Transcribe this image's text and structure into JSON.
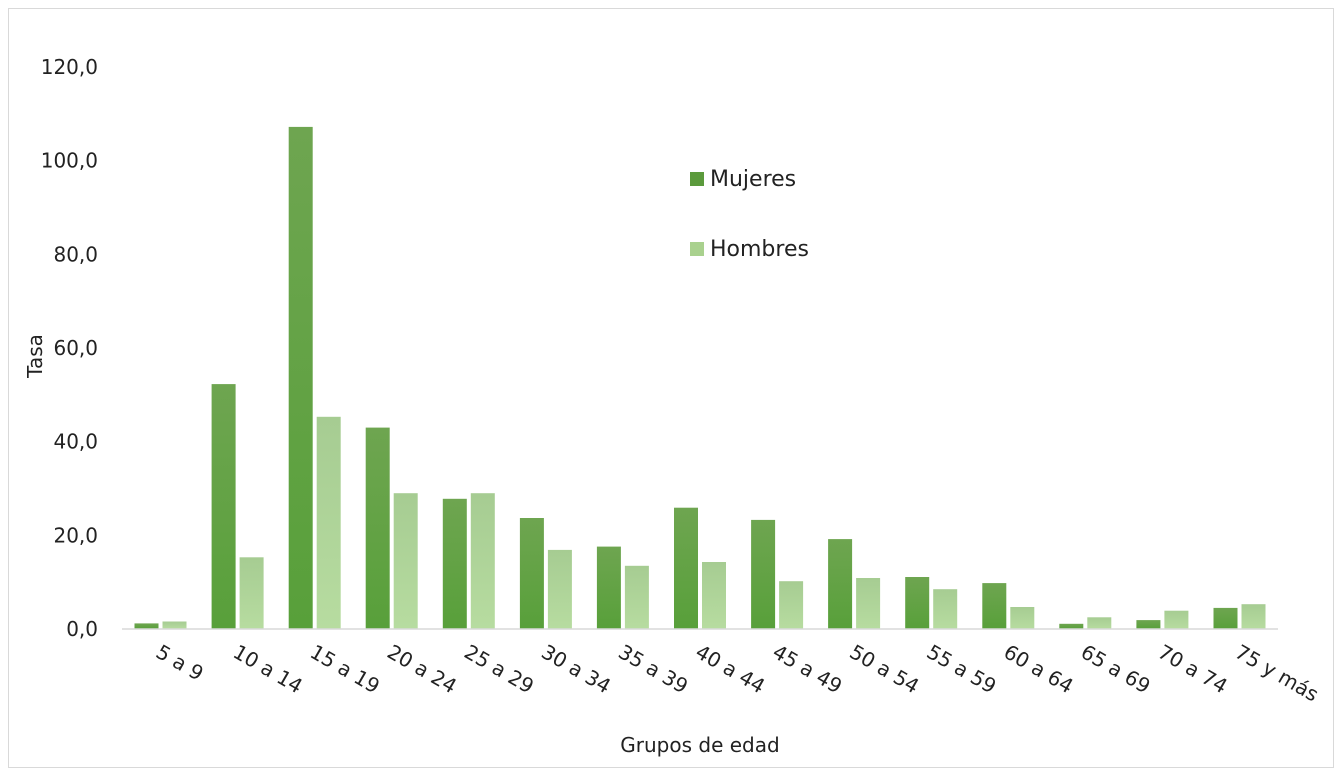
{
  "chart_data": {
    "type": "bar",
    "title": "",
    "xlabel": "Grupos de edad",
    "ylabel": "Tasa",
    "ylim": [
      0,
      120
    ],
    "yticks": [
      "0,0",
      "20,0",
      "40,0",
      "60,0",
      "80,0",
      "100,0",
      "120,0"
    ],
    "ytick_values": [
      0,
      20,
      40,
      60,
      80,
      100,
      120
    ],
    "categories": [
      "5 a 9",
      "10 a 14",
      "15 a 19",
      "20 a 24",
      "25 a 29",
      "30 a 34",
      "35 a 39",
      "40 a 44",
      "45 a 49",
      "50 a 54",
      "55 a 59",
      "60 a 64",
      "65 a 69",
      "70 a 74",
      "75 y más"
    ],
    "series": [
      {
        "name": "Mujeres",
        "color": "#5b9a3c",
        "values": [
          1.2,
          52.3,
          107.2,
          43.0,
          27.8,
          23.7,
          17.6,
          25.9,
          23.3,
          19.2,
          11.1,
          9.8,
          1.1,
          1.9,
          4.5
        ]
      },
      {
        "name": "Hombres",
        "color": "#a9d18e",
        "values": [
          1.6,
          15.3,
          45.3,
          29.0,
          29.0,
          16.9,
          13.5,
          14.3,
          10.2,
          10.9,
          8.5,
          4.7,
          2.5,
          3.9,
          5.3
        ]
      }
    ],
    "grid": false,
    "legend_position": "upper-center"
  }
}
